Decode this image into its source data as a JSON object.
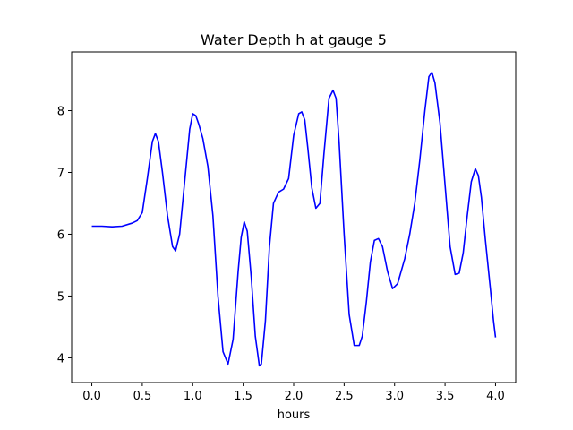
{
  "chart_data": {
    "type": "line",
    "title": "Water Depth h at gauge 5",
    "xlabel": "hours",
    "ylabel": "",
    "xlim": [
      -0.2,
      4.2
    ],
    "ylim": [
      3.6,
      8.95
    ],
    "xticks": [
      0.0,
      0.5,
      1.0,
      1.5,
      2.0,
      2.5,
      3.0,
      3.5,
      4.0
    ],
    "xtick_labels": [
      "0.0",
      "0.5",
      "1.0",
      "1.5",
      "2.0",
      "2.5",
      "3.0",
      "3.5",
      "4.0"
    ],
    "yticks": [
      4,
      5,
      6,
      7,
      8
    ],
    "ytick_labels": [
      "4",
      "5",
      "6",
      "7",
      "8"
    ],
    "grid": false,
    "series": [
      {
        "color": "#0000ff",
        "x": [
          0.0,
          0.1,
          0.2,
          0.3,
          0.4,
          0.45,
          0.5,
          0.55,
          0.6,
          0.63,
          0.66,
          0.7,
          0.75,
          0.8,
          0.83,
          0.87,
          0.92,
          0.97,
          1.0,
          1.03,
          1.06,
          1.1,
          1.15,
          1.2,
          1.25,
          1.3,
          1.35,
          1.4,
          1.45,
          1.48,
          1.51,
          1.54,
          1.58,
          1.62,
          1.66,
          1.68,
          1.72,
          1.76,
          1.8,
          1.85,
          1.9,
          1.95,
          2.0,
          2.05,
          2.08,
          2.11,
          2.14,
          2.18,
          2.22,
          2.26,
          2.3,
          2.35,
          2.39,
          2.42,
          2.45,
          2.5,
          2.55,
          2.6,
          2.65,
          2.68,
          2.72,
          2.76,
          2.8,
          2.84,
          2.88,
          2.93,
          2.98,
          3.03,
          3.1,
          3.15,
          3.2,
          3.25,
          3.3,
          3.34,
          3.37,
          3.4,
          3.45,
          3.5,
          3.55,
          3.6,
          3.64,
          3.68,
          3.72,
          3.76,
          3.8,
          3.83,
          3.86,
          3.9,
          3.95,
          3.98,
          4.0
        ],
        "y": [
          6.13,
          6.13,
          6.12,
          6.13,
          6.18,
          6.22,
          6.35,
          6.9,
          7.5,
          7.63,
          7.5,
          7.0,
          6.3,
          5.8,
          5.73,
          6.0,
          6.85,
          7.7,
          7.95,
          7.92,
          7.78,
          7.55,
          7.1,
          6.3,
          5.0,
          4.1,
          3.9,
          4.3,
          5.4,
          5.95,
          6.2,
          6.05,
          5.3,
          4.35,
          3.87,
          3.9,
          4.6,
          5.8,
          6.5,
          6.68,
          6.73,
          6.9,
          7.6,
          7.95,
          7.98,
          7.85,
          7.4,
          6.75,
          6.42,
          6.5,
          7.3,
          8.2,
          8.33,
          8.2,
          7.5,
          6.0,
          4.7,
          4.2,
          4.2,
          4.35,
          4.9,
          5.55,
          5.9,
          5.93,
          5.8,
          5.4,
          5.12,
          5.2,
          5.6,
          6.0,
          6.5,
          7.2,
          8.0,
          8.55,
          8.62,
          8.45,
          7.8,
          6.8,
          5.8,
          5.35,
          5.37,
          5.7,
          6.3,
          6.85,
          7.06,
          6.95,
          6.6,
          5.9,
          5.1,
          4.6,
          4.33
        ]
      }
    ]
  }
}
